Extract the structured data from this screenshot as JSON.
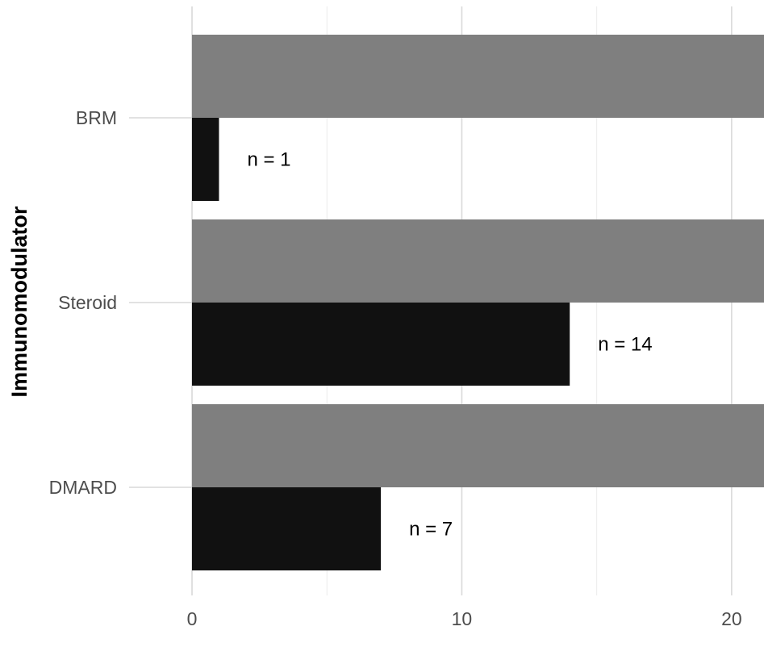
{
  "chart_data": {
    "type": "bar",
    "orientation": "horizontal",
    "title": "",
    "xlabel": "",
    "ylabel": "Immunomodulator",
    "categories": [
      "BRM",
      "Steroid",
      "DMARD"
    ],
    "series": [
      {
        "values": [
          21.2,
          21.2,
          21.2
        ],
        "color": "#7f7f7f"
      },
      {
        "values": [
          1,
          14,
          7
        ],
        "color": "#111111"
      }
    ],
    "data_labels": [
      "n = 1",
      "n = 14",
      "n = 7"
    ],
    "xlim": [
      0,
      21.2
    ],
    "xticks": [
      0,
      10,
      20
    ],
    "xtick_labels": [
      "0",
      "10",
      "20"
    ],
    "grid": true,
    "legend": "none"
  }
}
